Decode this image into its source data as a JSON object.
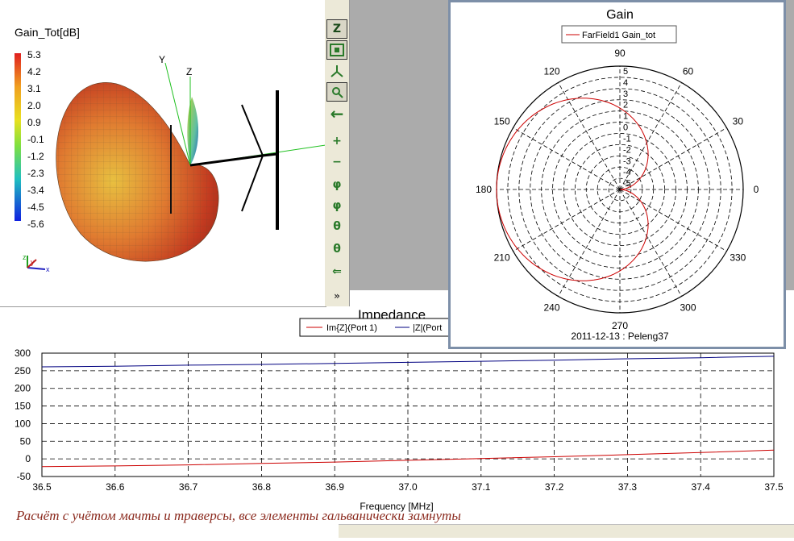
{
  "view3d": {
    "colorbar_title": "Gain_Tot[dB]",
    "colorbar_ticks": [
      "5.3",
      "4.2",
      "3.1",
      "2.0",
      "0.9",
      "-0.1",
      "-1.2",
      "-2.3",
      "-3.4",
      "-4.5",
      "-5.6"
    ],
    "axis_labels": {
      "y": "Y",
      "z": "Z"
    },
    "mini_axes": {
      "x": "x",
      "y": "y",
      "z": "z"
    }
  },
  "toolbar": {
    "buttons": [
      "zoom-axis-z",
      "fit-view",
      "rotate-axes",
      "zoom-window",
      "back",
      "zoom-in",
      "zoom-out",
      "rotate-phi-cw",
      "rotate-phi-ccw",
      "rotate-theta-cw",
      "rotate-theta-ccw",
      "step-back",
      "expand"
    ],
    "icons": {
      "zoom_axis_z": "Z",
      "back": "←",
      "zoom_in": "+",
      "zoom_out": "−",
      "phi": "φ",
      "theta": "θ",
      "step_back": "⇐",
      "expand": "»"
    }
  },
  "gain_window": {
    "title": "Gain",
    "legend": "FarField1 Gain_tot",
    "footer": "2011-12-13 : Peleng37",
    "angle_labels": [
      "0",
      "30",
      "60",
      "90",
      "120",
      "150",
      "180",
      "210",
      "240",
      "270",
      "300",
      "330"
    ],
    "radial_labels": [
      "5",
      "4",
      "3",
      "2",
      "1",
      "0",
      "-1",
      "-2",
      "-3",
      "-4",
      "-5"
    ],
    "colors": {
      "trace": "#cc0000",
      "frame": "#7d8fa8"
    }
  },
  "impedance_chart": {
    "title": "Impedance",
    "legend": [
      "Im{Z}(Port 1)",
      "|Z|(Port"
    ],
    "xlabel": "Frequency [MHz]",
    "x_ticks": [
      "36.5",
      "36.6",
      "36.7",
      "36.8",
      "36.9",
      "37.0",
      "37.1",
      "37.2",
      "37.3",
      "37.4",
      "37.5"
    ],
    "y_ticks": [
      "300",
      "250",
      "200",
      "150",
      "100",
      "50",
      "0",
      "-50"
    ]
  },
  "chart_data": {
    "type": "line",
    "title": "Impedance",
    "xlabel": "Frequency [MHz]",
    "ylabel": "",
    "xlim": [
      36.5,
      37.5
    ],
    "ylim": [
      -50,
      300
    ],
    "grid": true,
    "legend_position": "top",
    "x": [
      36.5,
      36.6,
      36.7,
      36.8,
      36.9,
      37.0,
      37.1,
      37.2,
      37.3,
      37.4,
      37.5
    ],
    "series": [
      {
        "name": "Im{Z}(Port 1)",
        "color": "#cc0000",
        "values": [
          -22,
          -20,
          -17,
          -13,
          -9,
          -4,
          1,
          6,
          12,
          18,
          25
        ]
      },
      {
        "name": "|Z|(Port",
        "color": "#000080",
        "values": [
          261,
          263,
          266,
          268,
          271,
          274,
          277,
          280,
          284,
          287,
          291
        ]
      }
    ]
  },
  "caption": "Расчёт с учётом мачты и траверсы, все элементы гальванически замнуты"
}
